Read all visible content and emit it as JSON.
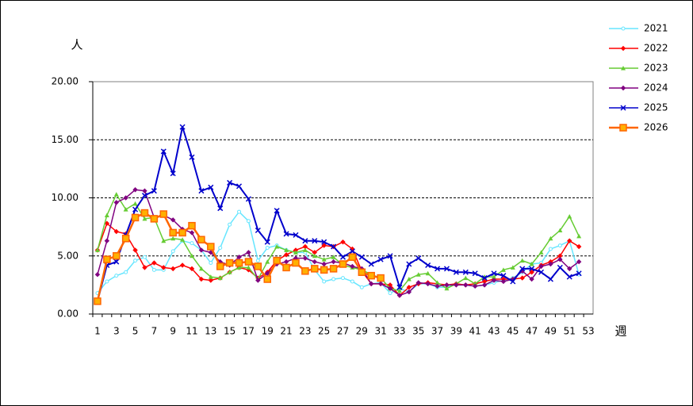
{
  "chart_data": {
    "type": "line",
    "y_label": "人",
    "x_label": "週",
    "categories": [
      "1",
      null,
      "3",
      null,
      "5",
      null,
      "7",
      null,
      "9",
      null,
      "11",
      null,
      "13",
      null,
      "15",
      null,
      "17",
      null,
      "19",
      null,
      "21",
      null,
      "23",
      null,
      "25",
      null,
      "27",
      null,
      "29",
      null,
      "31",
      null,
      "33",
      null,
      "35",
      null,
      "37",
      null,
      "39",
      null,
      "41",
      null,
      "43",
      null,
      "45",
      null,
      "47",
      null,
      "49",
      null,
      "51",
      null,
      "53"
    ],
    "ylim": [
      0,
      20
    ],
    "yticks": [
      {
        "value": 0,
        "label": "0.00"
      },
      {
        "value": 5,
        "label": "5.00"
      },
      {
        "value": 10,
        "label": "10.00"
      },
      {
        "value": 15,
        "label": "15.00"
      },
      {
        "value": 20,
        "label": "20.00"
      }
    ],
    "grid": true,
    "legend": "right",
    "series": [
      {
        "name": "2021",
        "color": "#66e6ff",
        "marker": "circle",
        "values": [
          1.8,
          2.8,
          3.3,
          3.6,
          4.6,
          4.9,
          3.8,
          3.8,
          5.4,
          6.3,
          6.1,
          5.5,
          4.4,
          5.7,
          7.7,
          8.8,
          8.0,
          4.6,
          5.7,
          5.9,
          5.5,
          5.3,
          5.3,
          3.8,
          2.8,
          3.0,
          3.1,
          2.8,
          2.3,
          2.6,
          2.7,
          1.8,
          2.2,
          1.9,
          2.6,
          2.6,
          2.3,
          2.3,
          2.6,
          2.5,
          2.4,
          2.5,
          2.7,
          2.9,
          3.1,
          3.6,
          4.3,
          4.4,
          5.6,
          5.9,
          6.3,
          3.4,
          null
        ]
      },
      {
        "name": "2022",
        "color": "#ff0000",
        "marker": "diamond",
        "values": [
          5.5,
          7.8,
          7.1,
          6.9,
          5.5,
          4.0,
          4.4,
          4.0,
          3.9,
          4.2,
          3.9,
          3.0,
          2.9,
          3.1,
          3.6,
          4.0,
          3.8,
          3.1,
          3.6,
          4.6,
          5.1,
          5.5,
          5.8,
          5.3,
          5.9,
          5.8,
          6.2,
          5.6,
          3.7,
          2.6,
          2.6,
          2.5,
          1.6,
          2.3,
          2.6,
          2.7,
          2.6,
          2.5,
          2.6,
          2.5,
          2.6,
          2.8,
          3.0,
          3.0,
          3.0,
          3.1,
          3.6,
          4.2,
          4.5,
          5.0,
          6.3,
          5.8,
          null
        ]
      },
      {
        "name": "2023",
        "color": "#66cc33",
        "marker": "triangle",
        "values": [
          5.5,
          8.5,
          10.3,
          9.0,
          9.5,
          8.2,
          8.3,
          6.3,
          6.5,
          6.4,
          5.0,
          3.9,
          3.2,
          3.1,
          3.6,
          4.0,
          4.0,
          3.0,
          4.5,
          5.8,
          5.5,
          5.3,
          5.5,
          5.0,
          4.7,
          4.9,
          4.2,
          4.0,
          3.8,
          3.4,
          3.1,
          2.2,
          2.0,
          3.0,
          3.4,
          3.5,
          2.7,
          2.2,
          2.6,
          3.1,
          2.6,
          3.2,
          3.2,
          3.8,
          4.0,
          4.6,
          4.3,
          5.3,
          6.5,
          7.2,
          8.4,
          6.7,
          null
        ]
      },
      {
        "name": "2024",
        "color": "#800080",
        "marker": "diamond",
        "values": [
          3.4,
          6.3,
          9.6,
          10.0,
          10.7,
          10.6,
          8.3,
          8.5,
          8.1,
          7.3,
          7.0,
          5.5,
          5.3,
          4.5,
          4.2,
          4.9,
          5.3,
          2.9,
          3.5,
          4.3,
          4.5,
          4.8,
          4.8,
          4.5,
          4.3,
          4.5,
          4.4,
          4.1,
          3.9,
          2.6,
          2.6,
          2.2,
          1.6,
          1.9,
          2.7,
          2.6,
          2.4,
          2.5,
          2.5,
          2.5,
          2.4,
          2.5,
          2.9,
          2.8,
          3.0,
          3.7,
          3.0,
          4.1,
          4.3,
          4.7,
          3.9,
          4.5,
          null
        ]
      },
      {
        "name": "2025",
        "color": "#0000cc",
        "marker": "cross",
        "values": [
          1.1,
          4.2,
          4.5,
          6.8,
          9.0,
          10.2,
          10.6,
          14.0,
          12.1,
          16.1,
          13.5,
          10.6,
          10.9,
          9.1,
          11.3,
          11.0,
          9.9,
          7.2,
          6.2,
          8.9,
          6.9,
          6.8,
          6.3,
          6.3,
          6.2,
          5.8,
          4.9,
          5.4,
          4.9,
          4.3,
          4.7,
          5.0,
          2.3,
          4.3,
          4.8,
          4.2,
          3.9,
          3.9,
          3.6,
          3.6,
          3.5,
          3.1,
          3.5,
          3.3,
          2.8,
          3.9,
          3.9,
          3.6,
          3.0,
          4.0,
          3.2,
          3.5,
          null
        ]
      },
      {
        "name": "2026",
        "color": "#ff6600",
        "marker": "square",
        "values": [
          1.1,
          4.7,
          5.0,
          6.5,
          8.3,
          8.7,
          8.2,
          8.6,
          7.0,
          7.0,
          7.6,
          6.4,
          5.8,
          4.1,
          4.4,
          4.4,
          4.5,
          4.1,
          3.0,
          4.6,
          4.0,
          4.4,
          3.7,
          3.9,
          3.8,
          3.9,
          4.3,
          4.9,
          3.6,
          3.3,
          3.1,
          null,
          null,
          null,
          null,
          null,
          null,
          null,
          null,
          null,
          null,
          null,
          null,
          null,
          null,
          null,
          null,
          null,
          null,
          null,
          null,
          null,
          null
        ]
      }
    ]
  }
}
